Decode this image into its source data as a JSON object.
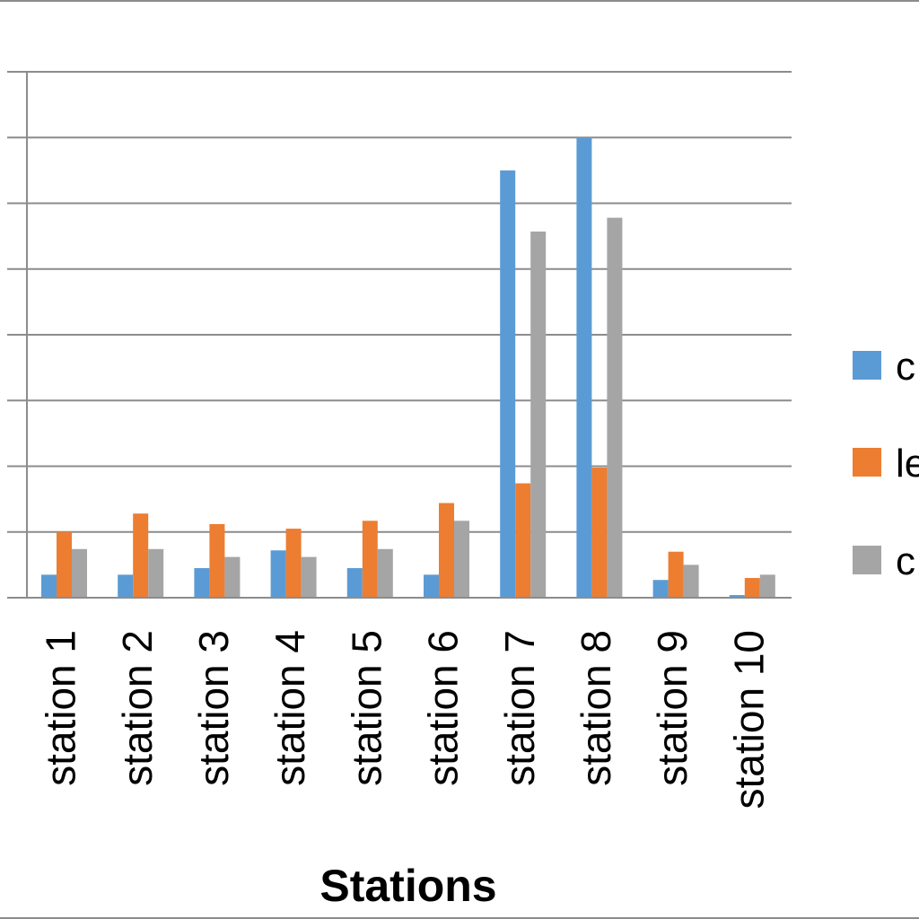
{
  "chart_data": {
    "type": "bar",
    "xlabel": "Stations",
    "ylabel": "",
    "ylim": [
      0,
      8
    ],
    "grid": true,
    "legend_position": "right",
    "categories": [
      "station 1",
      "station 2",
      "station 3",
      "station 4",
      "station 5",
      "station 6",
      "station 7",
      "station 8",
      "station 9",
      "station 10"
    ],
    "series": [
      {
        "name": "c",
        "color": "#5B9BD5",
        "values": [
          0.35,
          0.35,
          0.45,
          0.72,
          0.45,
          0.35,
          6.5,
          7.0,
          0.27,
          0.04
        ]
      },
      {
        "name": "le",
        "color": "#ED7D31",
        "values": [
          1.0,
          1.28,
          1.12,
          1.05,
          1.17,
          1.44,
          1.74,
          1.98,
          0.7,
          0.3
        ]
      },
      {
        "name": "c",
        "color": "#A5A5A5",
        "values": [
          0.74,
          0.74,
          0.62,
          0.62,
          0.74,
          1.17,
          5.57,
          5.78,
          0.5,
          0.35
        ]
      }
    ]
  }
}
